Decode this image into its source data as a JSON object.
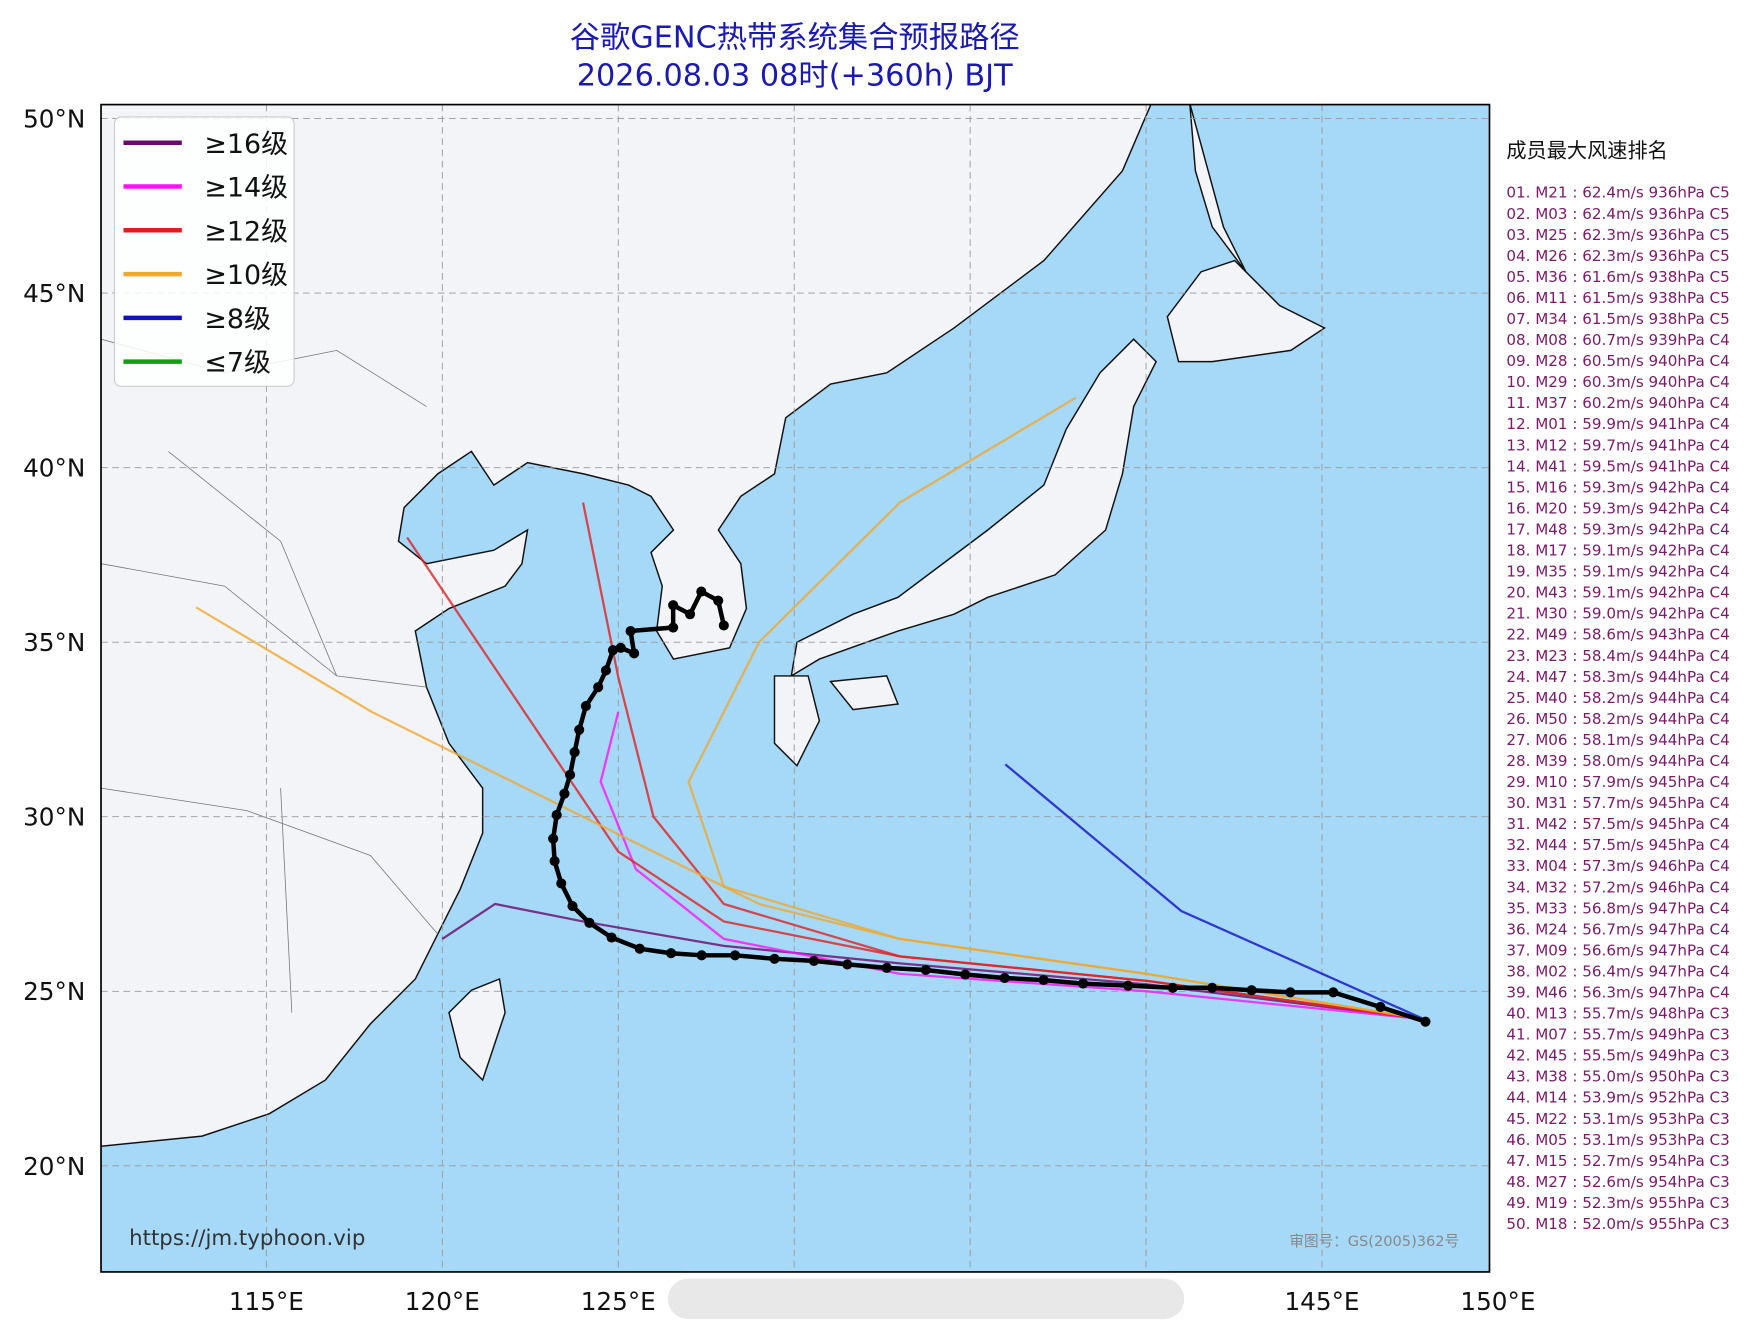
{
  "title": "谷歌GENC热带系统集合预报路径",
  "subtitle": "2026.08.03 08时(+360h) BJT",
  "map": {
    "xlim": [
      110.3,
      149.76
    ],
    "ylim": [
      16.96,
      50.4
    ],
    "xticks": [
      {
        "value": 115,
        "label": "115°E"
      },
      {
        "value": 120,
        "label": "120°E"
      },
      {
        "value": 125,
        "label": "125°E"
      },
      {
        "value": 130,
        "label": null
      },
      {
        "value": 135,
        "label": null
      },
      {
        "value": 140,
        "label": null
      },
      {
        "value": 145,
        "label": "145°E"
      },
      {
        "value": 150,
        "label": "150°E"
      }
    ],
    "yticks": [
      {
        "value": 20,
        "label": "20°N"
      },
      {
        "value": 25,
        "label": "25°N"
      },
      {
        "value": 30,
        "label": "30°N"
      },
      {
        "value": 35,
        "label": "35°N"
      },
      {
        "value": 40,
        "label": "40°N"
      },
      {
        "value": 45,
        "label": "45°N"
      },
      {
        "value": 50,
        "label": "50°N"
      }
    ]
  },
  "legend": [
    {
      "label": "≥16级",
      "color": "#6a0a6a"
    },
    {
      "label": "≥14级",
      "color": "#ff10ff"
    },
    {
      "label": "≥12级",
      "color": "#e02020"
    },
    {
      "label": "≥10级",
      "color": "#f0a830"
    },
    {
      "label": "≥8级",
      "color": "#1010c0"
    },
    {
      "label": "≤7级",
      "color": "#10a010"
    }
  ],
  "tracks": [
    {
      "color": "#6a0a6a",
      "lon": [
        147.9,
        140,
        133,
        128,
        124,
        121.5,
        120
      ],
      "lat": [
        24.2,
        25.2,
        25.8,
        26.3,
        27,
        27.5,
        26.5
      ]
    },
    {
      "color": "#ff10ff",
      "lon": [
        147.9,
        140,
        133,
        128,
        125.5,
        124.5,
        125
      ],
      "lat": [
        24.2,
        25,
        25.5,
        26.5,
        28.5,
        31,
        33
      ]
    },
    {
      "color": "#e02020",
      "lon": [
        147.9,
        140,
        133,
        128,
        125,
        123,
        121,
        119
      ],
      "lat": [
        24.2,
        25.3,
        26,
        27,
        29,
        32,
        35,
        38
      ]
    },
    {
      "color": "#f0a830",
      "lon": [
        147.9,
        140,
        133,
        128,
        127,
        129,
        133,
        138
      ],
      "lat": [
        24.2,
        25.5,
        26.5,
        28,
        31,
        35,
        39,
        42
      ]
    },
    {
      "color": "#e02020",
      "lon": [
        147.9,
        140,
        133,
        128,
        126,
        125,
        124
      ],
      "lat": [
        24.2,
        25.3,
        26,
        27.5,
        30,
        34,
        39
      ]
    },
    {
      "color": "#f0a830",
      "lon": [
        147.9,
        140,
        133,
        129,
        124,
        118,
        113
      ],
      "lat": [
        24.2,
        25.5,
        26.5,
        27.5,
        30,
        33,
        36
      ]
    },
    {
      "color": "#1010c0",
      "lon": [
        147.9,
        141,
        136
      ],
      "lat": [
        24.2,
        27.3,
        31.5
      ]
    }
  ],
  "mean_track": {
    "color": "#000000",
    "lon": [
      147.94,
      146.66,
      145.32,
      144.1,
      143.0,
      141.88,
      140.76,
      139.49,
      138.21,
      137.09,
      135.98,
      134.86,
      133.74,
      132.63,
      131.51,
      130.56,
      129.44,
      128.32,
      127.37,
      126.5,
      125.61,
      124.81,
      124.18,
      123.7,
      123.38,
      123.19,
      123.15,
      123.25,
      123.47,
      123.63,
      123.76,
      123.89,
      124.08,
      124.43,
      124.65,
      124.85,
      125.07,
      125.45,
      125.35,
      126.56,
      126.56,
      127.04,
      127.36,
      127.84,
      128.0
    ],
    "lat": [
      24.13,
      24.55,
      24.97,
      24.97,
      25.03,
      25.1,
      25.1,
      25.16,
      25.22,
      25.32,
      25.38,
      25.48,
      25.61,
      25.67,
      25.77,
      25.87,
      25.93,
      26.03,
      26.03,
      26.09,
      26.22,
      26.54,
      26.96,
      27.44,
      28.09,
      28.73,
      29.37,
      30.05,
      30.66,
      31.2,
      31.85,
      32.49,
      33.17,
      33.71,
      34.19,
      34.77,
      34.84,
      34.68,
      35.32,
      35.42,
      36.06,
      35.8,
      36.45,
      36.19,
      35.48
    ]
  },
  "ranking": {
    "title": "成员最大风速排名",
    "items": [
      "01. M21 : 62.4m/s 936hPa C5",
      "02. M03 : 62.4m/s 936hPa C5",
      "03. M25 : 62.3m/s 936hPa C5",
      "04. M26 : 62.3m/s 936hPa C5",
      "05. M36 : 61.6m/s 938hPa C5",
      "06. M11 : 61.5m/s 938hPa C5",
      "07. M34 : 61.5m/s 938hPa C5",
      "08. M08 : 60.7m/s 939hPa C4",
      "09. M28 : 60.5m/s 940hPa C4",
      "10. M29 : 60.3m/s 940hPa C4",
      "11. M37 : 60.2m/s 940hPa C4",
      "12. M01 : 59.9m/s 941hPa C4",
      "13. M12 : 59.7m/s 941hPa C4",
      "14. M41 : 59.5m/s 941hPa C4",
      "15. M16 : 59.3m/s 942hPa C4",
      "16. M20 : 59.3m/s 942hPa C4",
      "17. M48 : 59.3m/s 942hPa C4",
      "18. M17 : 59.1m/s 942hPa C4",
      "19. M35 : 59.1m/s 942hPa C4",
      "20. M43 : 59.1m/s 942hPa C4",
      "21. M30 : 59.0m/s 942hPa C4",
      "22. M49 : 58.6m/s 943hPa C4",
      "23. M23 : 58.4m/s 944hPa C4",
      "24. M47 : 58.3m/s 944hPa C4",
      "25. M40 : 58.2m/s 944hPa C4",
      "26. M50 : 58.2m/s 944hPa C4",
      "27. M06 : 58.1m/s 944hPa C4",
      "28. M39 : 58.0m/s 944hPa C4",
      "29. M10 : 57.9m/s 945hPa C4",
      "30. M31 : 57.7m/s 945hPa C4",
      "31. M42 : 57.5m/s 945hPa C4",
      "32. M44 : 57.5m/s 945hPa C4",
      "33. M04 : 57.3m/s 946hPa C4",
      "34. M32 : 57.2m/s 946hPa C4",
      "35. M33 : 56.8m/s 947hPa C4",
      "36. M24 : 56.7m/s 947hPa C4",
      "37. M09 : 56.6m/s 947hPa C4",
      "38. M02 : 56.4m/s 947hPa C4",
      "39. M46 : 56.3m/s 947hPa C4",
      "40. M13 : 55.7m/s 948hPa C3",
      "41. M07 : 55.7m/s 949hPa C3",
      "42. M45 : 55.5m/s 949hPa C3",
      "43. M38 : 55.0m/s 950hPa C3",
      "44. M14 : 53.9m/s 952hPa C3",
      "45. M22 : 53.1m/s 953hPa C3",
      "46. M05 : 53.1m/s 953hPa C3",
      "47. M15 : 52.7m/s 954hPa C3",
      "48. M27 : 52.6m/s 954hPa C3",
      "49. M19 : 52.3m/s 955hPa C3",
      "50. M18 : 52.0m/s 955hPa C3"
    ]
  },
  "source_url": "https://jm.typhoon.vip",
  "approval": "审图号：GS(2005)362号"
}
